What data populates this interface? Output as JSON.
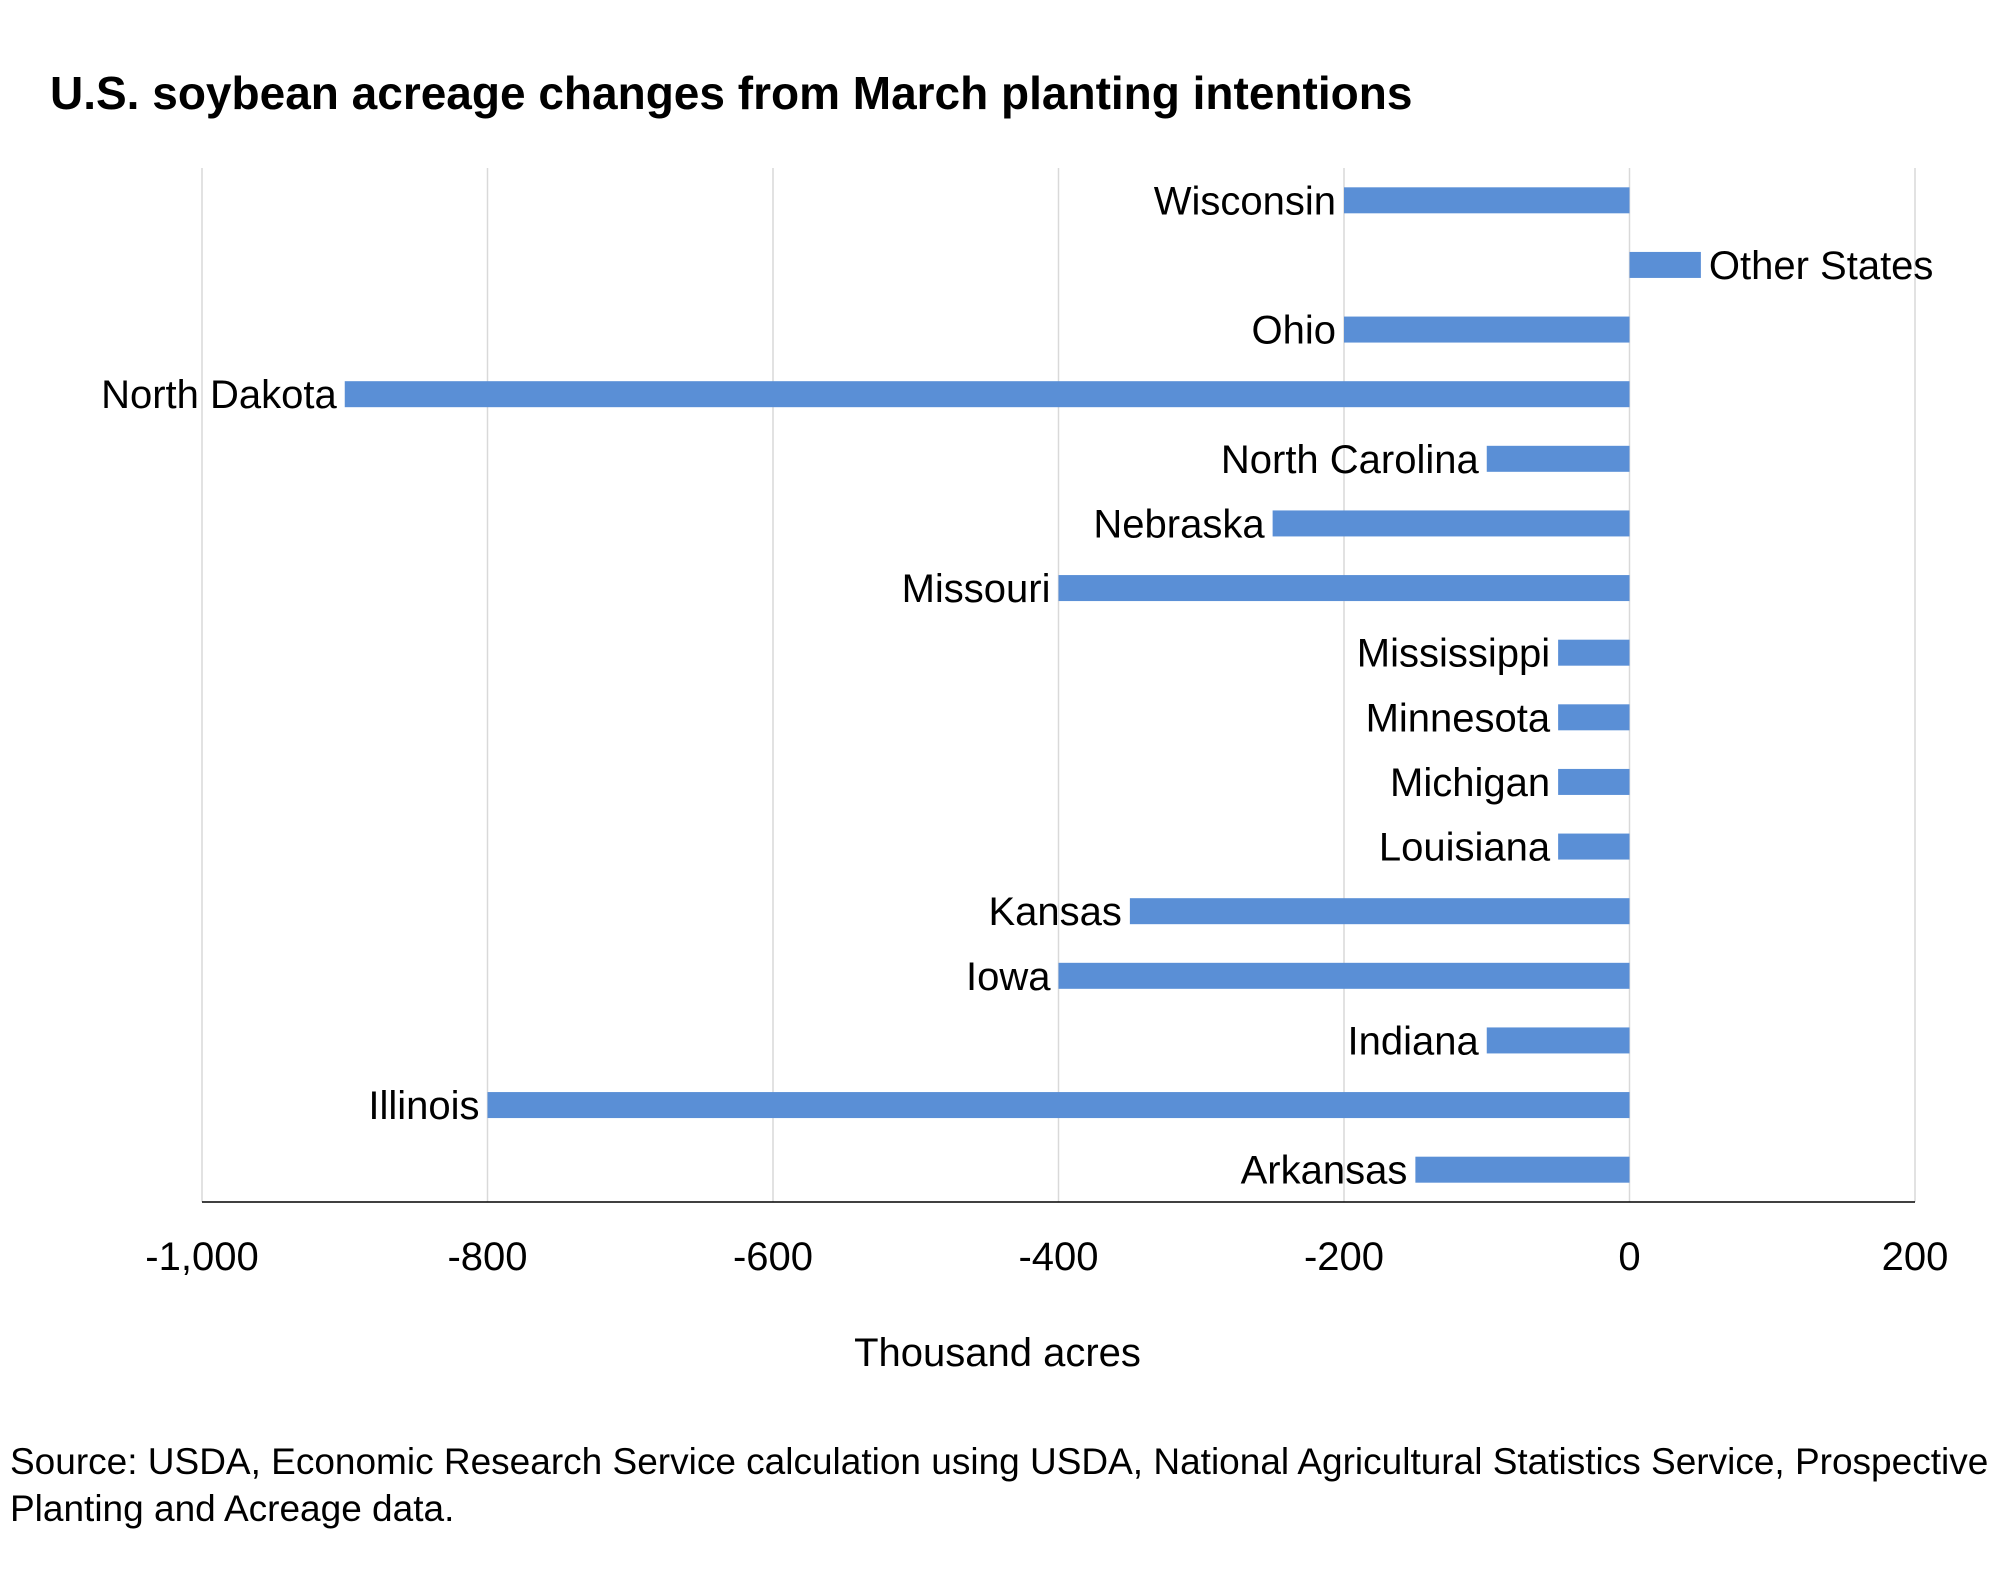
{
  "chart_data": {
    "type": "bar",
    "orientation": "horizontal",
    "title": "U.S. soybean acreage changes from March planting intentions",
    "xlabel": "Thousand acres",
    "ylabel": "",
    "xlim": [
      -1000,
      200
    ],
    "xticks": [
      -1000,
      -800,
      -600,
      -400,
      -200,
      0,
      200
    ],
    "xtick_labels": [
      "-1,000",
      "-800",
      "-600",
      "-400",
      "-200",
      "0",
      "200"
    ],
    "grid": true,
    "categories": [
      "Wisconsin",
      "Other States",
      "Ohio",
      "North Dakota",
      "North Carolina",
      "Nebraska",
      "Missouri",
      "Mississippi",
      "Minnesota",
      "Michigan",
      "Louisiana",
      "Kansas",
      "Iowa",
      "Indiana",
      "Illinois",
      "Arkansas"
    ],
    "values": [
      -200,
      50,
      -200,
      -900,
      -100,
      -250,
      -400,
      -50,
      -50,
      -50,
      -50,
      -350,
      -400,
      -100,
      -800,
      -150
    ],
    "bar_color": "#5a8fd6"
  },
  "source": "Source: USDA, Economic Research Service calculation using USDA, National Agricultural Statistics Service, Prospective Planting and Acreage data."
}
